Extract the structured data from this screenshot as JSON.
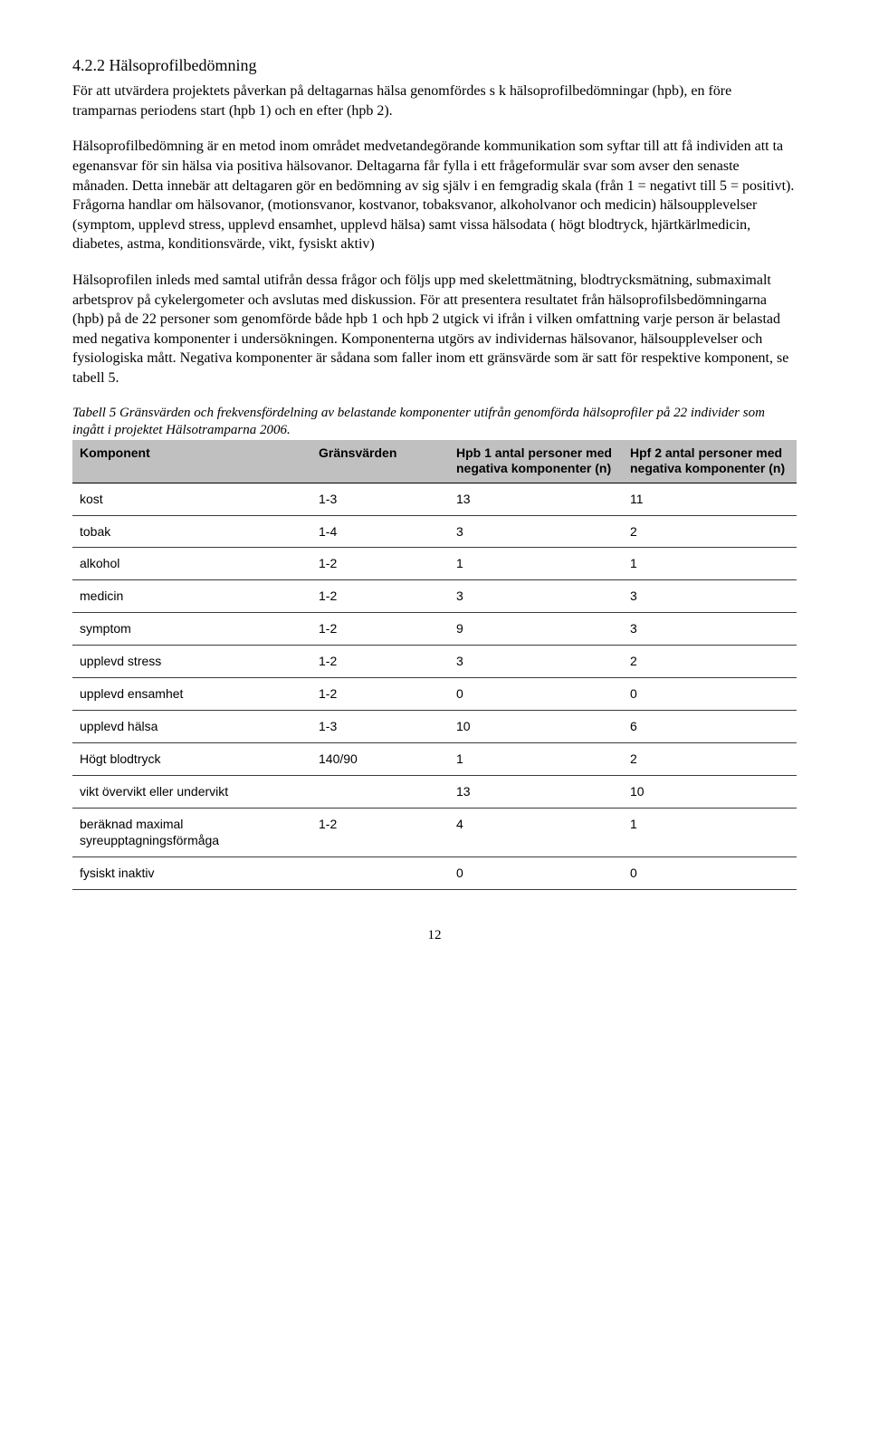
{
  "heading": "4.2.2  Hälsoprofilbedömning",
  "para1": "För att utvärdera projektets påverkan på deltagarnas hälsa genomfördes s k hälsoprofilbedömningar (hpb), en före tramparnas periodens start (hpb 1) och en efter (hpb 2).",
  "para2": "Hälsoprofilbedömning är en metod  inom området medvetandegörande kommunikation som syftar till att få individen att ta egenansvar för sin hälsa via positiva hälsovanor. Deltagarna får fylla i ett frågeformulär svar som avser den senaste månaden. Detta innebär att deltagaren gör en bedömning av sig själv i en femgradig skala (från 1 = negativt till 5 = positivt). Frågorna handlar om hälsovanor, (motionsvanor, kostvanor, tobaksvanor, alkoholvanor och medicin) hälsoupplevelser (symptom, upplevd stress, upplevd ensamhet, upplevd hälsa) samt vissa hälsodata ( högt blodtryck, hjärtkärlmedicin, diabetes, astma, konditionsvärde, vikt, fysiskt aktiv)",
  "para3": "Hälsoprofilen inleds med samtal utifrån dessa frågor och följs upp med skelettmätning, blodtrycksmätning, submaximalt arbetsprov på cykelergometer och avslutas med diskussion. För att presentera resultatet från hälsoprofilsbedömningarna (hpb) på de 22 personer som genomförde både hpb 1 och hpb 2 utgick vi ifrån i vilken omfattning varje person är belastad med negativa komponenter i undersökningen. Komponenterna utgörs av individernas hälsovanor, hälsoupplevelser och fysiologiska mått. Negativa komponenter är sådana som faller inom ett gränsvärde som är satt för respektive komponent, se tabell 5.",
  "tableCaption": "Tabell 5 Gränsvärden och frekvensfördelning av belastande komponenter utifrån genomförda hälsoprofiler på 22 individer som ingått i projektet Hälsotramparna 2006.",
  "table": {
    "header_bg": "#c0c0c0",
    "border_color": "#3a3a3a",
    "font_family": "Arial, Helvetica, sans-serif",
    "header_fontsize": 14,
    "body_fontsize": 14,
    "columns": [
      "Komponent",
      "Gränsvärden",
      "Hpb 1 antal personer med negativa komponenter (n)",
      "Hpf 2 antal personer med negativa komponenter (n)"
    ],
    "rows": [
      {
        "komponent": "kost",
        "grans": "1-3",
        "hpb1": "13",
        "hpb2": "11"
      },
      {
        "komponent": "tobak",
        "grans": "1-4",
        "hpb1": "3",
        "hpb2": "2"
      },
      {
        "komponent": "alkohol",
        "grans": "1-2",
        "hpb1": "1",
        "hpb2": "1"
      },
      {
        "komponent": "medicin",
        "grans": "1-2",
        "hpb1": "3",
        "hpb2": "3"
      },
      {
        "komponent": "symptom",
        "grans": "1-2",
        "hpb1": "9",
        "hpb2": "3"
      },
      {
        "komponent": "upplevd stress",
        "grans": "1-2",
        "hpb1": "3",
        "hpb2": "2"
      },
      {
        "komponent": "upplevd ensamhet",
        "grans": "1-2",
        "hpb1": "0",
        "hpb2": "0"
      },
      {
        "komponent": "upplevd hälsa",
        "grans": "1-3",
        "hpb1": "10",
        "hpb2": "6"
      },
      {
        "komponent": "Högt blodtryck",
        "grans": "140/90",
        "hpb1": "1",
        "hpb2": "2"
      },
      {
        "komponent": "vikt övervikt eller undervikt",
        "grans": "",
        "hpb1": "13",
        "hpb2": "10"
      },
      {
        "komponent": "beräknad maximal syreupptagningsförmåga",
        "grans": "1-2",
        "hpb1": "4",
        "hpb2": "1"
      },
      {
        "komponent": "fysiskt inaktiv",
        "grans": "",
        "hpb1": "0",
        "hpb2": "0"
      }
    ]
  },
  "pageNumber": "12"
}
